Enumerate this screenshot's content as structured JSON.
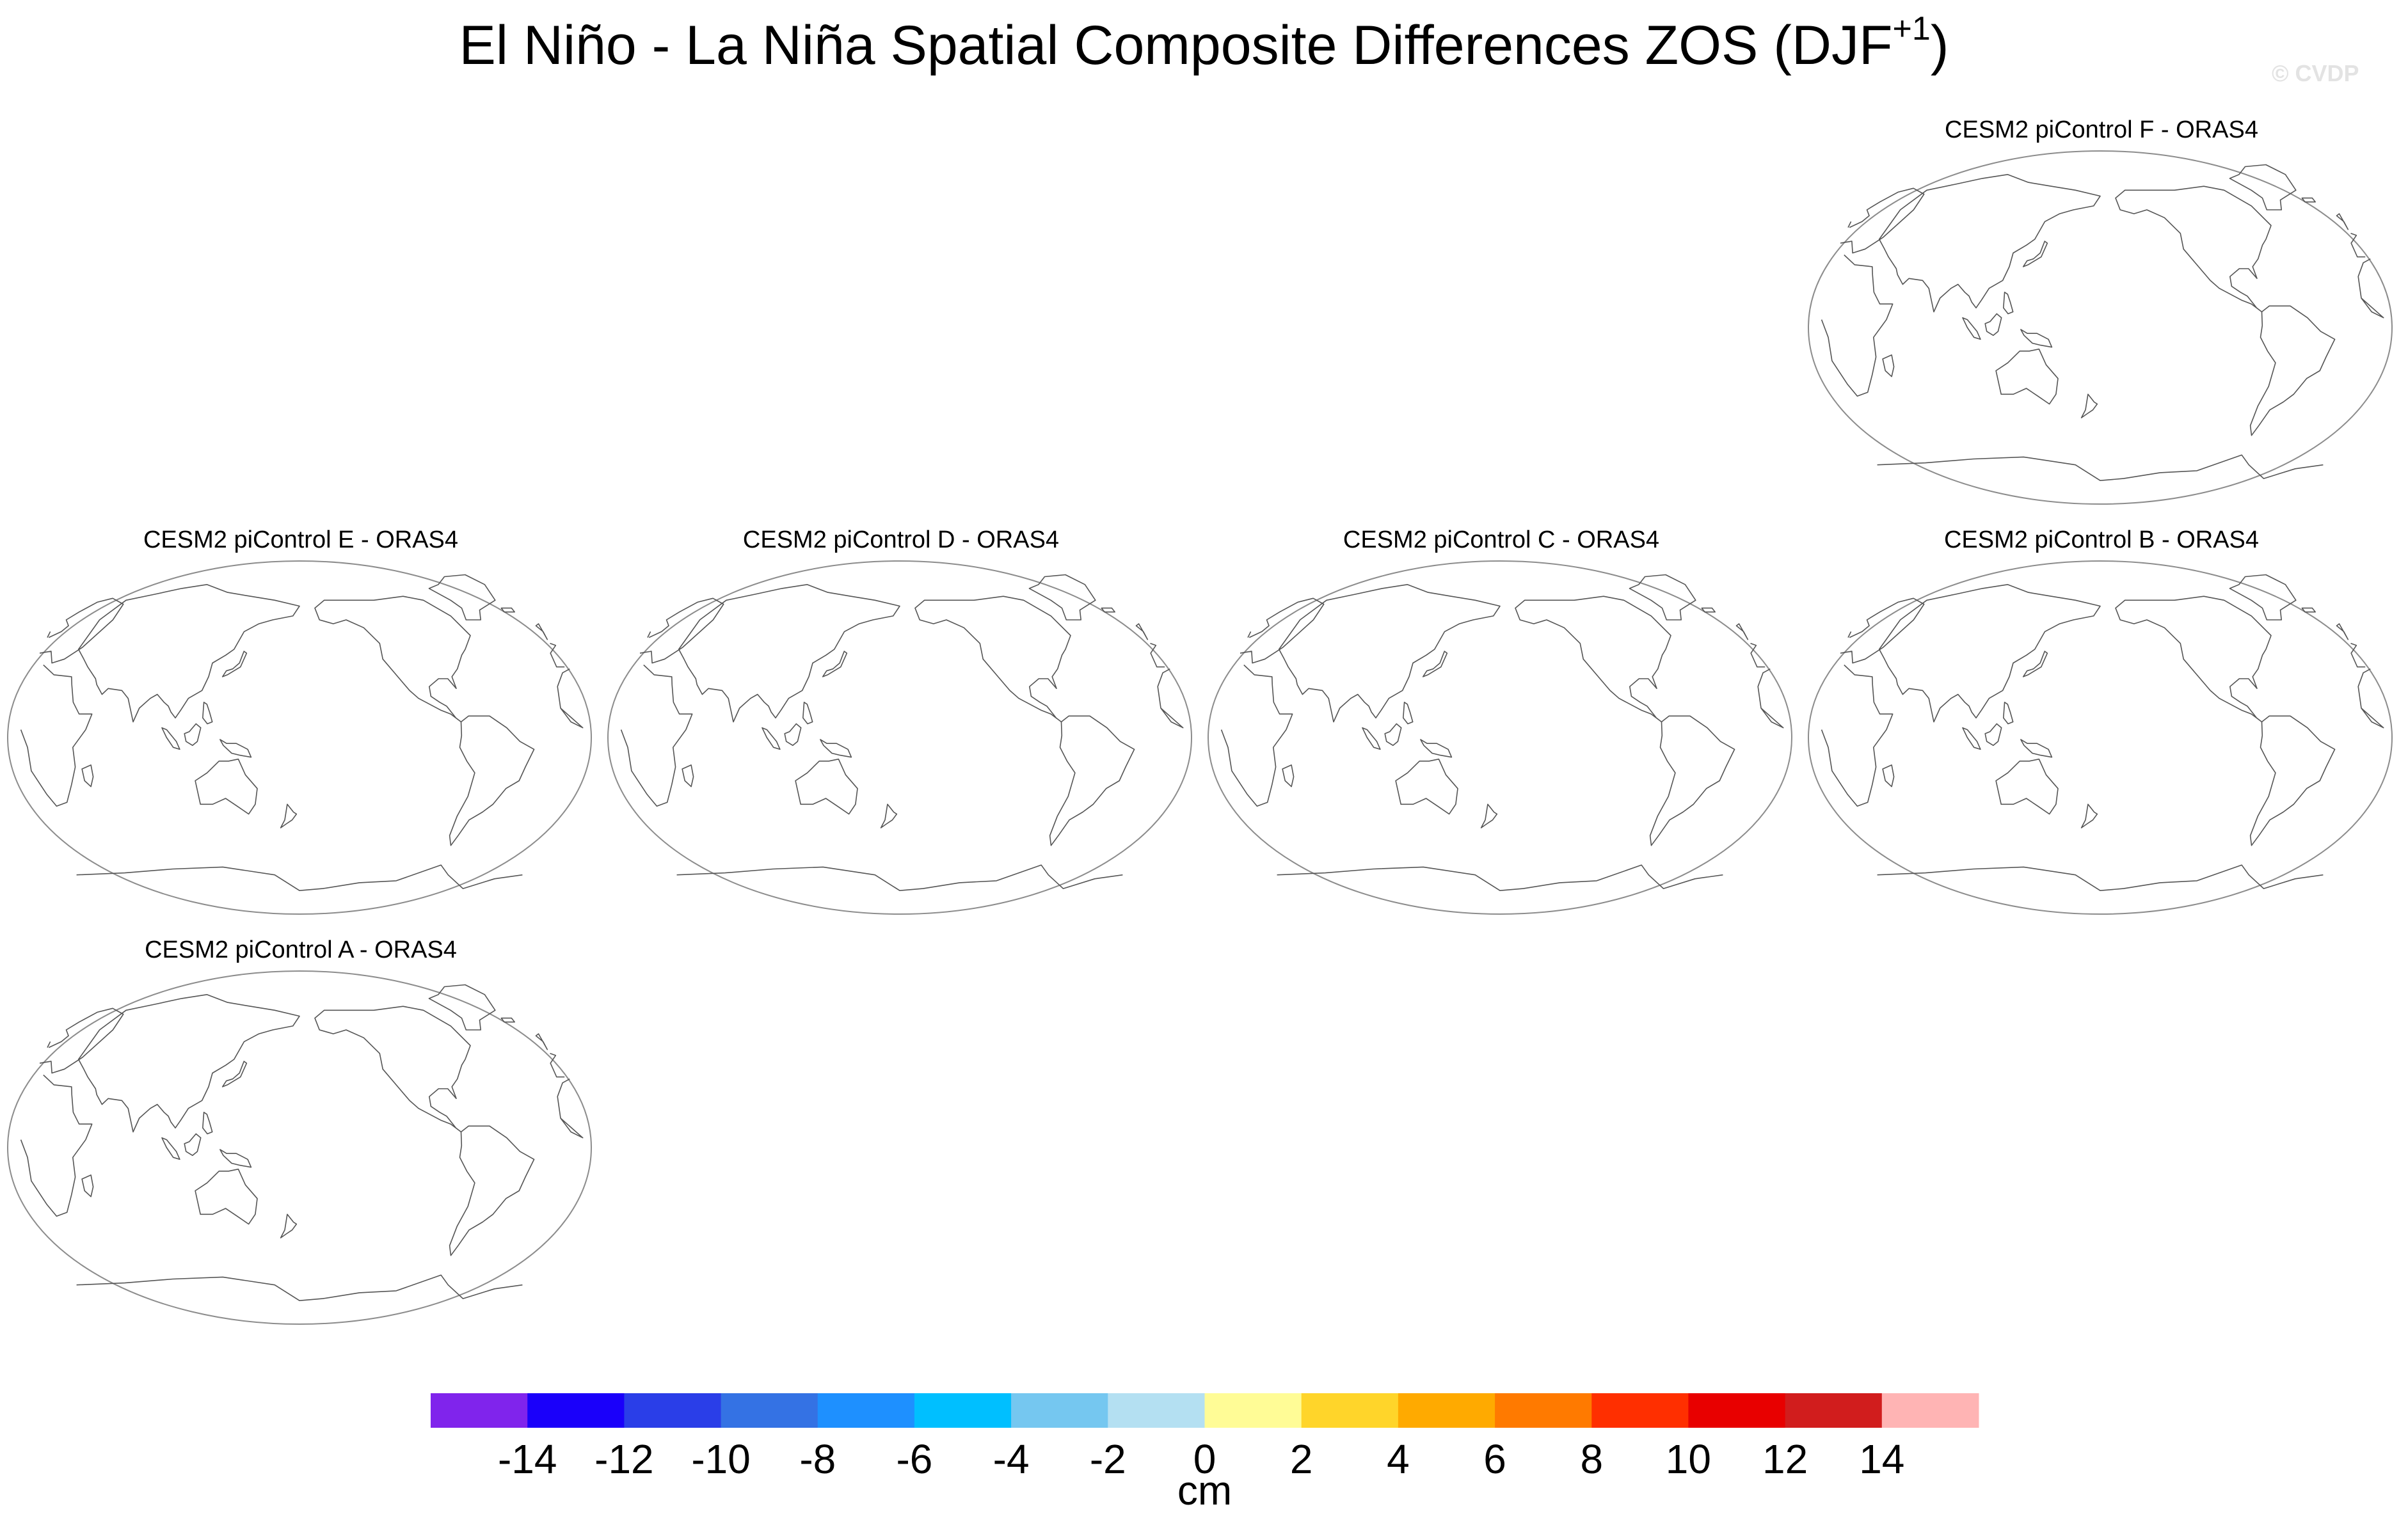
{
  "header": {
    "title_main": "El Niño - La Niña Spatial Composite Differences ZOS (DJF",
    "title_sup": "+1",
    "title_close": ")",
    "credit": "© CVDP"
  },
  "chart_data": {
    "type": "heatmap",
    "title": "El Niño - La Niña Spatial Composite Differences ZOS (DJF+1)",
    "projection": "Robinson global map, Pacific-centered",
    "panels": [
      {
        "name": "CESM2 piControl F - ORAS4"
      },
      {
        "name": "CESM2 piControl E - ORAS4"
      },
      {
        "name": "CESM2 piControl D - ORAS4"
      },
      {
        "name": "CESM2 piControl C - ORAS4"
      },
      {
        "name": "CESM2 piControl B - ORAS4"
      },
      {
        "name": "CESM2 piControl A - ORAS4"
      }
    ],
    "colorbar": {
      "label": "cm",
      "ticks": [
        "-14",
        "-12",
        "-10",
        "-8",
        "-6",
        "-4",
        "-2",
        "0",
        "2",
        "4",
        "6",
        "8",
        "10",
        "12",
        "14"
      ],
      "colors": [
        "#8024ec",
        "#1a00fa",
        "#2a3ee8",
        "#3472e4",
        "#1e90ff",
        "#00bfff",
        "#75c7f0",
        "#b4e0f2",
        "#fffc96",
        "#ffd52a",
        "#ffaa00",
        "#ff7a00",
        "#ff2f00",
        "#e80000",
        "#d11d1d",
        "#ffb4b4"
      ]
    }
  }
}
